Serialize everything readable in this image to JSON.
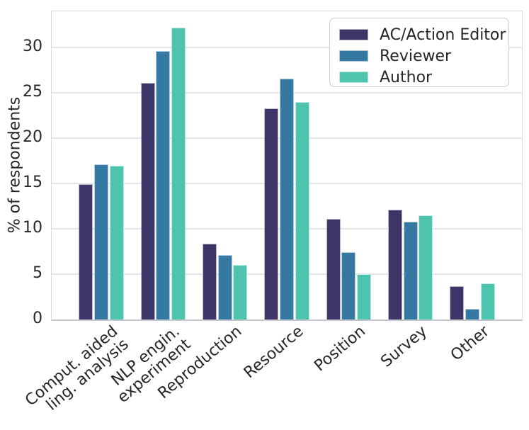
{
  "figure": {
    "background": "#ffffff",
    "text_color": "#262626",
    "grid_color": "#e4e4eb",
    "spine_color": "#d8d8e0"
  },
  "chart_data": {
    "type": "bar",
    "title": "",
    "xlabel": "",
    "ylabel": "% of respondents",
    "categories": [
      "Comput. aided\nling. analysis",
      "NLP engin.\nexperiment",
      "Reproduction",
      "Resource",
      "Position",
      "Survey",
      "Other"
    ],
    "series": [
      {
        "name": "AC/Action Editor",
        "color": "#3d3567",
        "values": [
          14.9,
          26.1,
          8.4,
          23.3,
          11.1,
          12.1,
          3.7
        ]
      },
      {
        "name": "Reviewer",
        "color": "#3579a2",
        "values": [
          17.1,
          29.6,
          7.1,
          26.6,
          7.4,
          10.8,
          1.2
        ]
      },
      {
        "name": "Author",
        "color": "#4ec3ad",
        "values": [
          17.0,
          32.2,
          6.0,
          24.0,
          5.0,
          11.5,
          4.0
        ]
      }
    ],
    "yticks": [
      0,
      5,
      10,
      15,
      20,
      25,
      30
    ],
    "ylim": [
      0,
      34
    ],
    "grid": true,
    "legend_position": "upper right",
    "xtick_rotation": 40
  }
}
